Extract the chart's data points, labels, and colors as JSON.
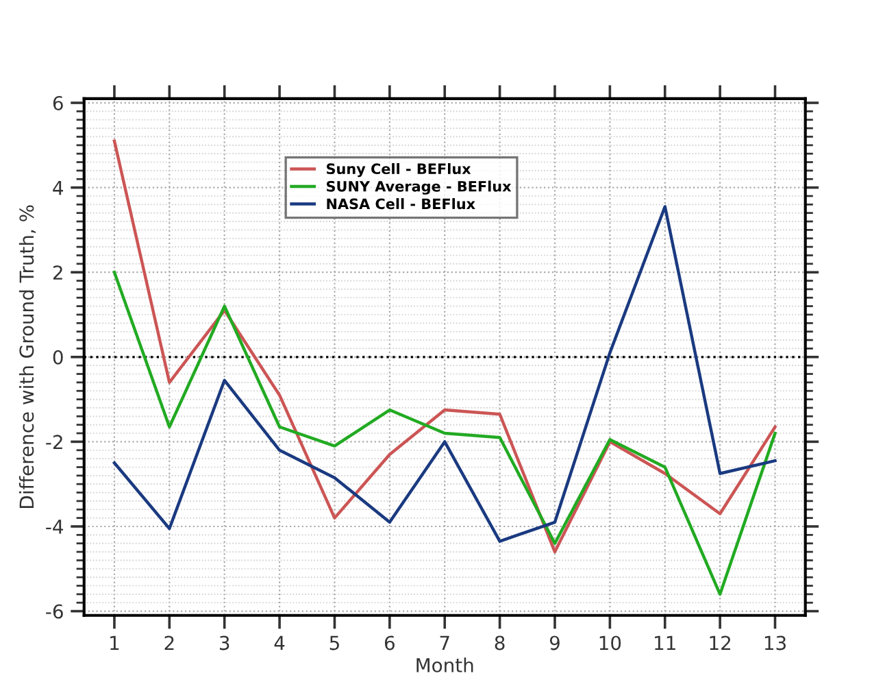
{
  "chart_data": {
    "type": "line",
    "xlabel": "Month",
    "ylabel": "Difference with Ground Truth, %",
    "x": [
      1,
      2,
      3,
      4,
      5,
      6,
      7,
      8,
      9,
      10,
      11,
      12,
      13
    ],
    "series": [
      {
        "name": "Suny Cell - BEFlux",
        "color": "#cc5555",
        "values": [
          5.1,
          -0.6,
          1.1,
          -0.9,
          -3.8,
          -2.3,
          -1.25,
          -1.35,
          -4.6,
          -2.0,
          -2.75,
          -3.7,
          -1.65
        ]
      },
      {
        "name": "SUNY Average - BEFlux",
        "color": "#22aa22",
        "values": [
          2.0,
          -1.65,
          1.2,
          -1.65,
          -2.1,
          -1.25,
          -1.8,
          -1.9,
          -4.4,
          -1.95,
          -2.6,
          -5.6,
          -1.8
        ]
      },
      {
        "name": "NASA Cell - BEFlux",
        "color": "#1a3a80",
        "values": [
          -2.5,
          -4.05,
          -0.55,
          -2.2,
          -2.85,
          -3.9,
          -2.0,
          -4.35,
          -3.9,
          0.1,
          3.55,
          -2.75,
          -2.45
        ]
      }
    ],
    "xlim": [
      0.45,
      13.55
    ],
    "xticks": [
      1,
      2,
      3,
      4,
      5,
      6,
      7,
      8,
      9,
      10,
      11,
      12,
      13
    ],
    "ylim": [
      -6.1,
      6.1
    ],
    "yticks": [
      -6,
      -4,
      -2,
      0,
      2,
      4,
      6
    ],
    "ref_lines": [
      {
        "axis": "y",
        "value": 0,
        "color": "#000000",
        "line_style": "dotted"
      }
    ],
    "grid": true,
    "legend": "top",
    "marker": "none",
    "line_style": "solid"
  }
}
